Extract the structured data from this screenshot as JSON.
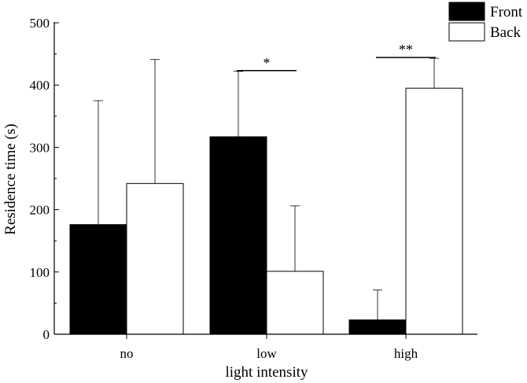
{
  "chart_data": {
    "type": "bar",
    "categories": [
      "no",
      "low",
      "high"
    ],
    "series": [
      {
        "name": "Front",
        "values": [
          176,
          317,
          23
        ],
        "errors": [
          199,
          105,
          48
        ],
        "color": "#000000"
      },
      {
        "name": "Back",
        "values": [
          242,
          101,
          395
        ],
        "errors": [
          199,
          105,
          48
        ],
        "color": "#ffffff"
      }
    ],
    "xlabel": "light intensity",
    "ylabel": "Residence time (s)",
    "ylim": [
      0,
      500
    ],
    "yticks": [
      "0",
      "100",
      "200",
      "300",
      "400",
      "500"
    ],
    "grid": false,
    "legend_position": "top-right",
    "annotations": [
      {
        "category": "low",
        "text": "*"
      },
      {
        "category": "high",
        "text": "**"
      }
    ]
  }
}
